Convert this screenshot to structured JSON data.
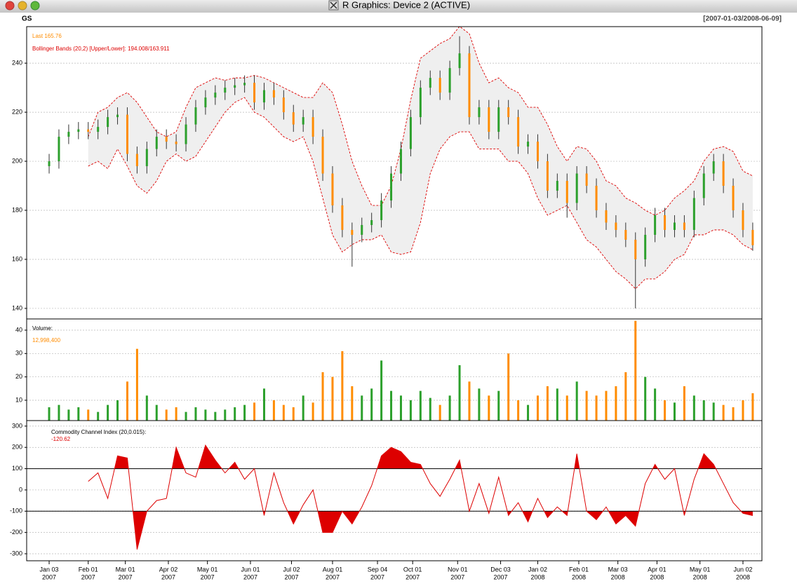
{
  "window": {
    "title": "R Graphics: Device 2 (ACTIVE)"
  },
  "chart_data": [
    {
      "type": "candlestick",
      "title": "GS",
      "subtitle": "[2007-01-03/2008-06-09]",
      "annotations": [
        "Last 165.76",
        "Bollinger Bands (20,2) [Upper/Lower]: 194.008/163.911"
      ],
      "up_color": "#2ca02c",
      "down_color": "#ff8c00",
      "grid": true,
      "x": [
        0,
        5,
        10,
        15,
        20,
        25,
        30,
        35,
        40,
        45,
        50,
        55,
        60,
        65,
        70,
        75,
        80,
        85,
        90,
        95,
        100,
        105,
        110,
        115,
        120,
        125,
        130,
        135,
        140,
        145,
        150,
        155,
        160,
        165,
        170,
        175,
        180,
        185,
        190,
        195,
        200,
        205,
        210,
        215,
        220,
        225,
        230,
        235,
        240,
        245,
        250,
        255,
        260,
        265,
        270,
        275,
        280,
        285,
        290,
        295,
        300,
        305,
        310,
        315,
        320,
        325,
        330,
        335,
        340,
        345,
        350,
        355,
        360
      ],
      "open": [
        198,
        200,
        210,
        212,
        213,
        212,
        214,
        218,
        219,
        203,
        198,
        205,
        210,
        208,
        207,
        215,
        222,
        226,
        228,
        230,
        231,
        232,
        224,
        229,
        226,
        220,
        215,
        218,
        210,
        195,
        182,
        172,
        170,
        174,
        176,
        184,
        195,
        205,
        218,
        230,
        234,
        228,
        238,
        244,
        218,
        222,
        212,
        222,
        218,
        206,
        208,
        200,
        188,
        192,
        183,
        195,
        190,
        180,
        175,
        172,
        168,
        160,
        170,
        178,
        172,
        175,
        172,
        185,
        195,
        200,
        190,
        180,
        172
      ],
      "high": [
        203,
        213,
        215,
        216,
        216,
        217,
        221,
        222,
        222,
        206,
        208,
        213,
        213,
        211,
        218,
        225,
        229,
        231,
        233,
        234,
        235,
        235,
        232,
        232,
        229,
        223,
        221,
        221,
        213,
        198,
        185,
        175,
        177,
        179,
        187,
        198,
        208,
        221,
        233,
        237,
        237,
        241,
        251,
        247,
        225,
        225,
        225,
        225,
        221,
        211,
        211,
        203,
        195,
        195,
        198,
        198,
        193,
        183,
        178,
        175,
        171,
        173,
        181,
        181,
        178,
        178,
        188,
        198,
        203,
        203,
        193,
        183,
        175
      ],
      "low": [
        195,
        197,
        207,
        209,
        209,
        209,
        211,
        215,
        200,
        195,
        195,
        202,
        205,
        204,
        204,
        212,
        219,
        223,
        225,
        227,
        228,
        221,
        221,
        223,
        217,
        212,
        212,
        207,
        192,
        179,
        169,
        157,
        167,
        171,
        173,
        181,
        192,
        202,
        215,
        227,
        225,
        225,
        235,
        215,
        215,
        209,
        209,
        215,
        203,
        203,
        197,
        185,
        185,
        177,
        180,
        187,
        177,
        172,
        169,
        165,
        140,
        157,
        167,
        169,
        169,
        169,
        169,
        182,
        192,
        187,
        177,
        169,
        163.5
      ],
      "close": [
        200,
        210,
        212,
        213,
        212,
        214,
        218,
        219,
        203,
        198,
        205,
        210,
        208,
        207,
        215,
        222,
        226,
        228,
        230,
        231,
        232,
        224,
        229,
        226,
        220,
        215,
        218,
        210,
        195,
        182,
        172,
        170,
        174,
        176,
        184,
        195,
        205,
        218,
        230,
        234,
        228,
        238,
        244,
        218,
        222,
        212,
        222,
        218,
        206,
        208,
        200,
        188,
        192,
        183,
        195,
        190,
        180,
        175,
        172,
        168,
        160,
        170,
        178,
        172,
        175,
        172,
        185,
        195,
        200,
        190,
        180,
        172,
        165.76
      ],
      "bands": {
        "color": "#dd0000",
        "fill": "#efefef",
        "upper": [
          null,
          null,
          null,
          null,
          210,
          220,
          222,
          226,
          228,
          224,
          218,
          212,
          210,
          212,
          222,
          230,
          232,
          234,
          233,
          234,
          234,
          235,
          234,
          232,
          230,
          228,
          226,
          226,
          232,
          228,
          215,
          200,
          190,
          182,
          182,
          190,
          205,
          225,
          242,
          245,
          248,
          250,
          255,
          252,
          240,
          232,
          234,
          230,
          228,
          222,
          222,
          215,
          206,
          200,
          206,
          205,
          200,
          192,
          190,
          185,
          183,
          180,
          178,
          180,
          185,
          188,
          192,
          200,
          205,
          206,
          204,
          196,
          194.008
        ],
        "lower": [
          null,
          null,
          null,
          null,
          198,
          200,
          197,
          205,
          198,
          190,
          187,
          192,
          200,
          203,
          200,
          202,
          208,
          214,
          220,
          224,
          226,
          220,
          218,
          214,
          210,
          208,
          210,
          200,
          185,
          170,
          163,
          166,
          168,
          168,
          170,
          163,
          162,
          163,
          175,
          195,
          205,
          210,
          212,
          212,
          205,
          205,
          205,
          200,
          200,
          195,
          185,
          178,
          180,
          182,
          175,
          168,
          165,
          160,
          155,
          152,
          148,
          152,
          152,
          155,
          160,
          162,
          170,
          170,
          172,
          172,
          170,
          166,
          163.911
        ]
      },
      "xlim": [
        -11.5,
        364.7
      ],
      "xticks": [
        {
          "value": 0,
          "label": "Jan 03",
          "year": "2007"
        },
        {
          "value": 20,
          "label": "Feb 01",
          "year": "2007"
        },
        {
          "value": 39,
          "label": "Mar 01",
          "year": "2007"
        },
        {
          "value": 61,
          "label": "Apr 02",
          "year": "2007"
        },
        {
          "value": 81,
          "label": "May 01",
          "year": "2007"
        },
        {
          "value": 103,
          "label": "Jun 01",
          "year": "2007"
        },
        {
          "value": 124,
          "label": "Jul 02",
          "year": "2007"
        },
        {
          "value": 145,
          "label": "Aug 01",
          "year": "2007"
        },
        {
          "value": 168,
          "label": "Sep 04",
          "year": "2007"
        },
        {
          "value": 186,
          "label": "Oct 01",
          "year": "2007"
        },
        {
          "value": 209,
          "label": "Nov 01",
          "year": "2007"
        },
        {
          "value": 231,
          "label": "Dec 03",
          "year": "2007"
        },
        {
          "value": 250,
          "label": "Jan 02",
          "year": "2008"
        },
        {
          "value": 271,
          "label": "Feb 01",
          "year": "2008"
        },
        {
          "value": 291,
          "label": "Mar 03",
          "year": "2008"
        },
        {
          "value": 311,
          "label": "Apr 01",
          "year": "2008"
        },
        {
          "value": 333,
          "label": "May 01",
          "year": "2008"
        },
        {
          "value": 355,
          "label": "Jun 02",
          "year": "2008"
        }
      ],
      "ylim": [
        135.7,
        254.9
      ],
      "yticks": [
        140,
        160,
        180,
        200,
        220,
        240
      ]
    },
    {
      "type": "bar",
      "title": "Volume:",
      "annotation": "12,998,400",
      "grid": true,
      "values": [
        7,
        8,
        6,
        7,
        6,
        5,
        8,
        10,
        18,
        32,
        12,
        8,
        6,
        7,
        5,
        7,
        6,
        5,
        6,
        7,
        8,
        9,
        15,
        10,
        8,
        7,
        12,
        9,
        22,
        20,
        31,
        16,
        12,
        15,
        27,
        14,
        12,
        10,
        14,
        11,
        8,
        12,
        25,
        18,
        15,
        12,
        14,
        30,
        10,
        8,
        12,
        16,
        15,
        12,
        18,
        14,
        12,
        14,
        16,
        22,
        44,
        20,
        15,
        10,
        9,
        16,
        12,
        10,
        9,
        8,
        7,
        10,
        12.9984
      ],
      "ylim": [
        1.3,
        44.8
      ],
      "yticks": [
        10,
        20,
        30,
        40
      ]
    },
    {
      "type": "line",
      "title": "Commodity Channel Index (20,0.015):",
      "annotation": "-120.62",
      "color": "#dd0000",
      "grid": true,
      "values": [
        null,
        null,
        null,
        null,
        40,
        80,
        -40,
        160,
        150,
        -280,
        -100,
        -50,
        -40,
        200,
        80,
        60,
        210,
        140,
        80,
        130,
        50,
        100,
        -120,
        80,
        -60,
        -160,
        -70,
        0,
        -200,
        -200,
        -100,
        -160,
        -80,
        20,
        160,
        200,
        180,
        130,
        120,
        30,
        -30,
        50,
        140,
        -100,
        30,
        -110,
        60,
        -120,
        -60,
        -150,
        -40,
        -130,
        -80,
        -120,
        170,
        -100,
        -140,
        -80,
        -160,
        -120,
        -170,
        30,
        120,
        50,
        100,
        -120,
        50,
        170,
        120,
        30,
        -60,
        -110,
        -120.62
      ],
      "hlines": [
        100,
        -100
      ],
      "ylim": [
        -333,
        326
      ],
      "yticks": [
        -300,
        -200,
        -100,
        0,
        100,
        200,
        300
      ]
    }
  ]
}
